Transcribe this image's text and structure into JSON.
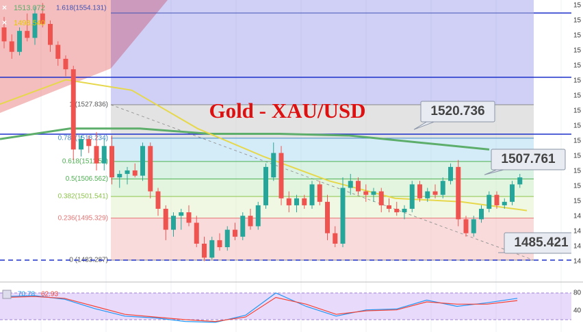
{
  "chart_data": {
    "type": "candlestick",
    "title": "Gold - XAU/USD",
    "ylim": [
      1478.38,
      1557.86
    ],
    "up_color": "#26a69a",
    "down_color": "#ef5350",
    "ohlc": [
      [
        1550,
        1553,
        1544,
        1546
      ],
      [
        1546,
        1548,
        1541,
        1543
      ],
      [
        1543,
        1550,
        1542,
        1549
      ],
      [
        1549,
        1554,
        1546,
        1547
      ],
      [
        1547,
        1556,
        1545,
        1554
      ],
      [
        1554,
        1557,
        1550,
        1551
      ],
      [
        1551,
        1552,
        1543,
        1545
      ],
      [
        1545,
        1546,
        1539,
        1541
      ],
      [
        1541,
        1542,
        1536,
        1538
      ],
      [
        1538,
        1539,
        1512,
        1515
      ],
      [
        1515,
        1519,
        1513,
        1518
      ],
      [
        1518,
        1519,
        1514,
        1516
      ],
      [
        1516,
        1520,
        1509,
        1511
      ],
      [
        1511,
        1518,
        1509,
        1516
      ],
      [
        1516,
        1519,
        1505,
        1507
      ],
      [
        1507,
        1509,
        1504,
        1508
      ],
      [
        1508,
        1510,
        1505,
        1509
      ],
      [
        1509,
        1511,
        1507,
        1507.5
      ],
      [
        1507.5,
        1517,
        1506,
        1516
      ],
      [
        1516,
        1517,
        1501,
        1503
      ],
      [
        1503,
        1504,
        1496,
        1498
      ],
      [
        1498,
        1499,
        1489,
        1492
      ],
      [
        1492,
        1497,
        1490,
        1496
      ],
      [
        1496,
        1498,
        1492,
        1497
      ],
      [
        1497,
        1499,
        1493,
        1494
      ],
      [
        1494,
        1496,
        1487,
        1488
      ],
      [
        1488,
        1490,
        1483,
        1484
      ],
      [
        1484,
        1490,
        1483.5,
        1489
      ],
      [
        1489,
        1491,
        1486,
        1487
      ],
      [
        1487,
        1493,
        1486,
        1492
      ],
      [
        1492,
        1494,
        1489,
        1490
      ],
      [
        1490,
        1497,
        1489,
        1496
      ],
      [
        1496,
        1498,
        1492,
        1493
      ],
      [
        1493,
        1500,
        1492,
        1499
      ],
      [
        1499,
        1511,
        1498,
        1510
      ],
      [
        1507,
        1517,
        1506,
        1514
      ],
      [
        1514,
        1516,
        1499,
        1501
      ],
      [
        1501,
        1503,
        1497,
        1499
      ],
      [
        1499,
        1502,
        1497,
        1501
      ],
      [
        1501,
        1502,
        1498,
        1499
      ],
      [
        1499,
        1506,
        1498,
        1505
      ],
      [
        1505,
        1506,
        1499,
        1500
      ],
      [
        1500,
        1502,
        1489,
        1491
      ],
      [
        1491,
        1493,
        1487,
        1488
      ],
      [
        1488,
        1507,
        1487,
        1504
      ],
      [
        1504,
        1508,
        1502,
        1506
      ],
      [
        1506,
        1507,
        1502,
        1503
      ],
      [
        1503,
        1505,
        1500,
        1502
      ],
      [
        1502,
        1504,
        1500,
        1503
      ],
      [
        1503,
        1504,
        1497,
        1499
      ],
      [
        1499,
        1501,
        1497,
        1498
      ],
      [
        1498,
        1500,
        1496,
        1497
      ],
      [
        1497,
        1499,
        1495,
        1498
      ],
      [
        1498,
        1506,
        1497,
        1505
      ],
      [
        1505,
        1506,
        1500,
        1501
      ],
      [
        1501,
        1504,
        1500,
        1503
      ],
      [
        1503,
        1505,
        1501,
        1502
      ],
      [
        1502,
        1507,
        1501,
        1506
      ],
      [
        1506,
        1511,
        1505,
        1510
      ],
      [
        1510,
        1512,
        1493,
        1495
      ],
      [
        1495,
        1496,
        1490,
        1491
      ],
      [
        1491,
        1496,
        1490,
        1495
      ],
      [
        1495,
        1499,
        1494,
        1498
      ],
      [
        1498,
        1503,
        1497,
        1502
      ],
      [
        1502,
        1503,
        1498,
        1499
      ],
      [
        1499,
        1501,
        1498,
        1500
      ],
      [
        1500,
        1506,
        1499,
        1505
      ],
      [
        1505,
        1508,
        1504,
        1507
      ]
    ],
    "series": [
      {
        "color": "#5cae6a",
        "values": [
          1518,
          1521,
          1521,
          1519.5,
          1519.5,
          1519,
          1517,
          1515
        ]
      },
      {
        "color": "#e6d84a",
        "values": [
          1528,
          1535,
          1532,
          1521,
          1513,
          1506,
          1501,
          1500,
          1497.5
        ]
      }
    ],
    "legend": [
      {
        "label": "1513.072",
        "color": "#5cae6a"
      },
      {
        "label": "1498.540",
        "color": "#e6c800"
      }
    ],
    "fib_levels": [
      {
        "label": "1.618(1554.131)",
        "value": 1554.131,
        "color": "#3f51b5",
        "fill": "rgba(120,120,230,0.35)"
      },
      {
        "label": "1 (1527.836)",
        "value": 1527.836,
        "color": "#888888",
        "fill": "rgba(200,200,200,0.5)"
      },
      {
        "label": "0.786(1518.234)",
        "value": 1518.234,
        "color": "#3f88c5",
        "fill": "rgba(160,210,240,0.45)"
      },
      {
        "label": "0.618(1511.58)",
        "value": 1511.58,
        "color": "#4caf50",
        "fill": "rgba(180,230,200,0.5)"
      },
      {
        "label": "0.5(1506.562)",
        "value": 1506.562,
        "color": "#4caf50",
        "fill": "rgba(200,235,190,0.5)"
      },
      {
        "label": "0.382(1501.541)",
        "value": 1501.541,
        "color": "#8bc34a",
        "fill": "rgba(225,240,200,0.5)"
      },
      {
        "label": "0.236(1495.329)",
        "value": 1495.329,
        "color": "#e57373",
        "fill": "rgba(245,190,190,0.55)"
      },
      {
        "label": "0 (1483.287)",
        "value": 1483.287,
        "color": "#888888",
        "fill": "none"
      }
    ],
    "horizontal_lines": [
      1535.7,
      1519.4
    ],
    "price_callouts": [
      {
        "label": "1520.736",
        "value": 1520.736
      },
      {
        "label": "1507.761",
        "value": 1507.761
      },
      {
        "label": "1485.421",
        "value": 1485.421
      }
    ],
    "axis_stubs": [
      "15",
      "15",
      "15",
      "15",
      "15",
      "15",
      "15",
      "15",
      "15",
      "15",
      "15",
      "15",
      "15",
      "15",
      "14",
      "14",
      "14",
      "14"
    ],
    "rsi": {
      "ylim": [
        0,
        100
      ],
      "yticks": [
        80,
        40
      ],
      "band": [
        20,
        80
      ],
      "series": [
        {
          "label": "70.78",
          "color": "#2196f3",
          "values": [
            72,
            74,
            66,
            45,
            28,
            24,
            16,
            14,
            30,
            80,
            50,
            28,
            42,
            44,
            64,
            50,
            58,
            68
          ]
        },
        {
          "label": "62.93",
          "color": "#f44336",
          "values": [
            70,
            72,
            68,
            50,
            32,
            26,
            20,
            16,
            26,
            70,
            55,
            32,
            40,
            42,
            60,
            55,
            55,
            63
          ]
        }
      ]
    }
  }
}
